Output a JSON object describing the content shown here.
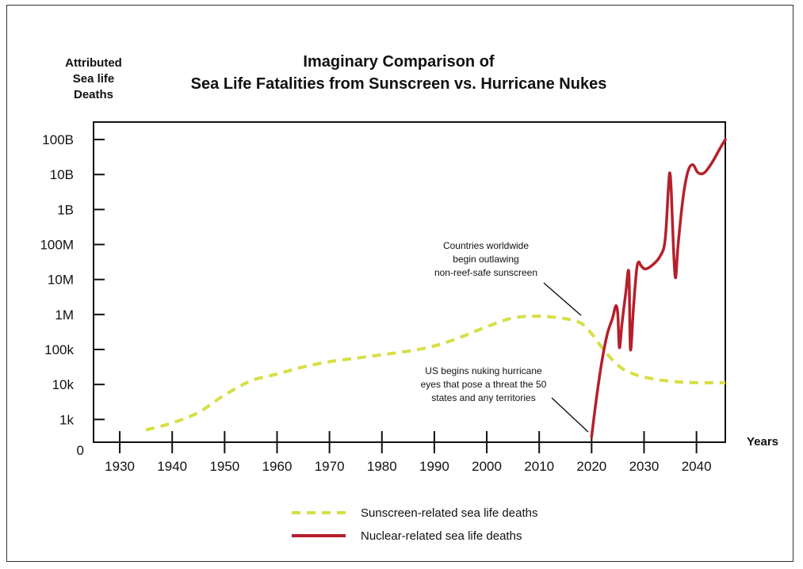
{
  "chart_data": {
    "type": "line",
    "title_lines": [
      "Imaginary Comparison of",
      "Sea Life Fatalities from Sunscreen vs. Hurricane Nukes"
    ],
    "ylabel_lines": [
      "Attributed",
      "Sea life",
      "Deaths"
    ],
    "xlabel": "Years",
    "y_scale": "log10",
    "y_ticks": [
      {
        "label": "0",
        "exp": 0
      },
      {
        "label": "1k",
        "exp": 3
      },
      {
        "label": "10k",
        "exp": 4
      },
      {
        "label": "100k",
        "exp": 5
      },
      {
        "label": "1M",
        "exp": 6
      },
      {
        "label": "10M",
        "exp": 7
      },
      {
        "label": "100M",
        "exp": 8
      },
      {
        "label": "1B",
        "exp": 9
      },
      {
        "label": "10B",
        "exp": 10
      },
      {
        "label": "100B",
        "exp": 11
      }
    ],
    "x_ticks": [
      1930,
      1940,
      1950,
      1960,
      1970,
      1980,
      1990,
      2000,
      2010,
      2020,
      2030,
      2040
    ],
    "xlim": [
      1925,
      2045.5
    ],
    "ylim_exp": [
      2.35,
      11.5
    ],
    "series": [
      {
        "name": "Sunscreen-related sea life deaths",
        "color": "#d6df45",
        "style": "dashed",
        "points": [
          [
            1935,
            2.7
          ],
          [
            1940,
            2.9
          ],
          [
            1945,
            3.2
          ],
          [
            1950,
            3.7
          ],
          [
            1955,
            4.1
          ],
          [
            1960,
            4.3
          ],
          [
            1965,
            4.5
          ],
          [
            1970,
            4.65
          ],
          [
            1975,
            4.75
          ],
          [
            1980,
            4.85
          ],
          [
            1985,
            4.95
          ],
          [
            1990,
            5.1
          ],
          [
            1995,
            5.35
          ],
          [
            2000,
            5.65
          ],
          [
            2005,
            5.9
          ],
          [
            2010,
            5.95
          ],
          [
            2015,
            5.88
          ],
          [
            2018,
            5.75
          ],
          [
            2020,
            5.45
          ],
          [
            2022,
            5.05
          ],
          [
            2025,
            4.55
          ],
          [
            2028,
            4.3
          ],
          [
            2032,
            4.15
          ],
          [
            2036,
            4.08
          ],
          [
            2040,
            4.05
          ],
          [
            2045.5,
            4.05
          ]
        ]
      },
      {
        "name": "Nuclear-related sea life deaths",
        "color": "#b5202c",
        "style": "solid",
        "points": [
          [
            2020,
            2.5
          ],
          [
            2021,
            3.7
          ],
          [
            2022,
            4.7
          ],
          [
            2023,
            5.45
          ],
          [
            2024,
            5.9
          ],
          [
            2024.6,
            6.25
          ],
          [
            2025,
            6.0
          ],
          [
            2025.3,
            5.05
          ],
          [
            2025.8,
            5.75
          ],
          [
            2026.5,
            6.6
          ],
          [
            2027.1,
            7.2
          ],
          [
            2027.4,
            5.0
          ],
          [
            2028.0,
            6.25
          ],
          [
            2028.6,
            7.3
          ],
          [
            2029.0,
            7.5
          ],
          [
            2029.4,
            7.4
          ],
          [
            2030.2,
            7.3
          ],
          [
            2031.5,
            7.4
          ],
          [
            2033,
            7.65
          ],
          [
            2034.0,
            8.1
          ],
          [
            2034.6,
            9.5
          ],
          [
            2034.9,
            10.05
          ],
          [
            2035.2,
            9.5
          ],
          [
            2035.6,
            7.95
          ],
          [
            2036.0,
            7.05
          ],
          [
            2036.5,
            8.0
          ],
          [
            2037.5,
            9.4
          ],
          [
            2038.4,
            10.1
          ],
          [
            2039.3,
            10.28
          ],
          [
            2040.3,
            10.05
          ],
          [
            2041.5,
            10.05
          ],
          [
            2043,
            10.35
          ],
          [
            2044.5,
            10.75
          ],
          [
            2045.5,
            11.0
          ]
        ]
      }
    ],
    "annotations": [
      {
        "lines": [
          "Countries worldwide",
          "begin outlawing",
          "non-reef-safe sunscreen"
        ]
      },
      {
        "lines": [
          "US begins nuking hurricane",
          "eyes that pose a threat the 50",
          "states and any territories"
        ]
      }
    ]
  }
}
